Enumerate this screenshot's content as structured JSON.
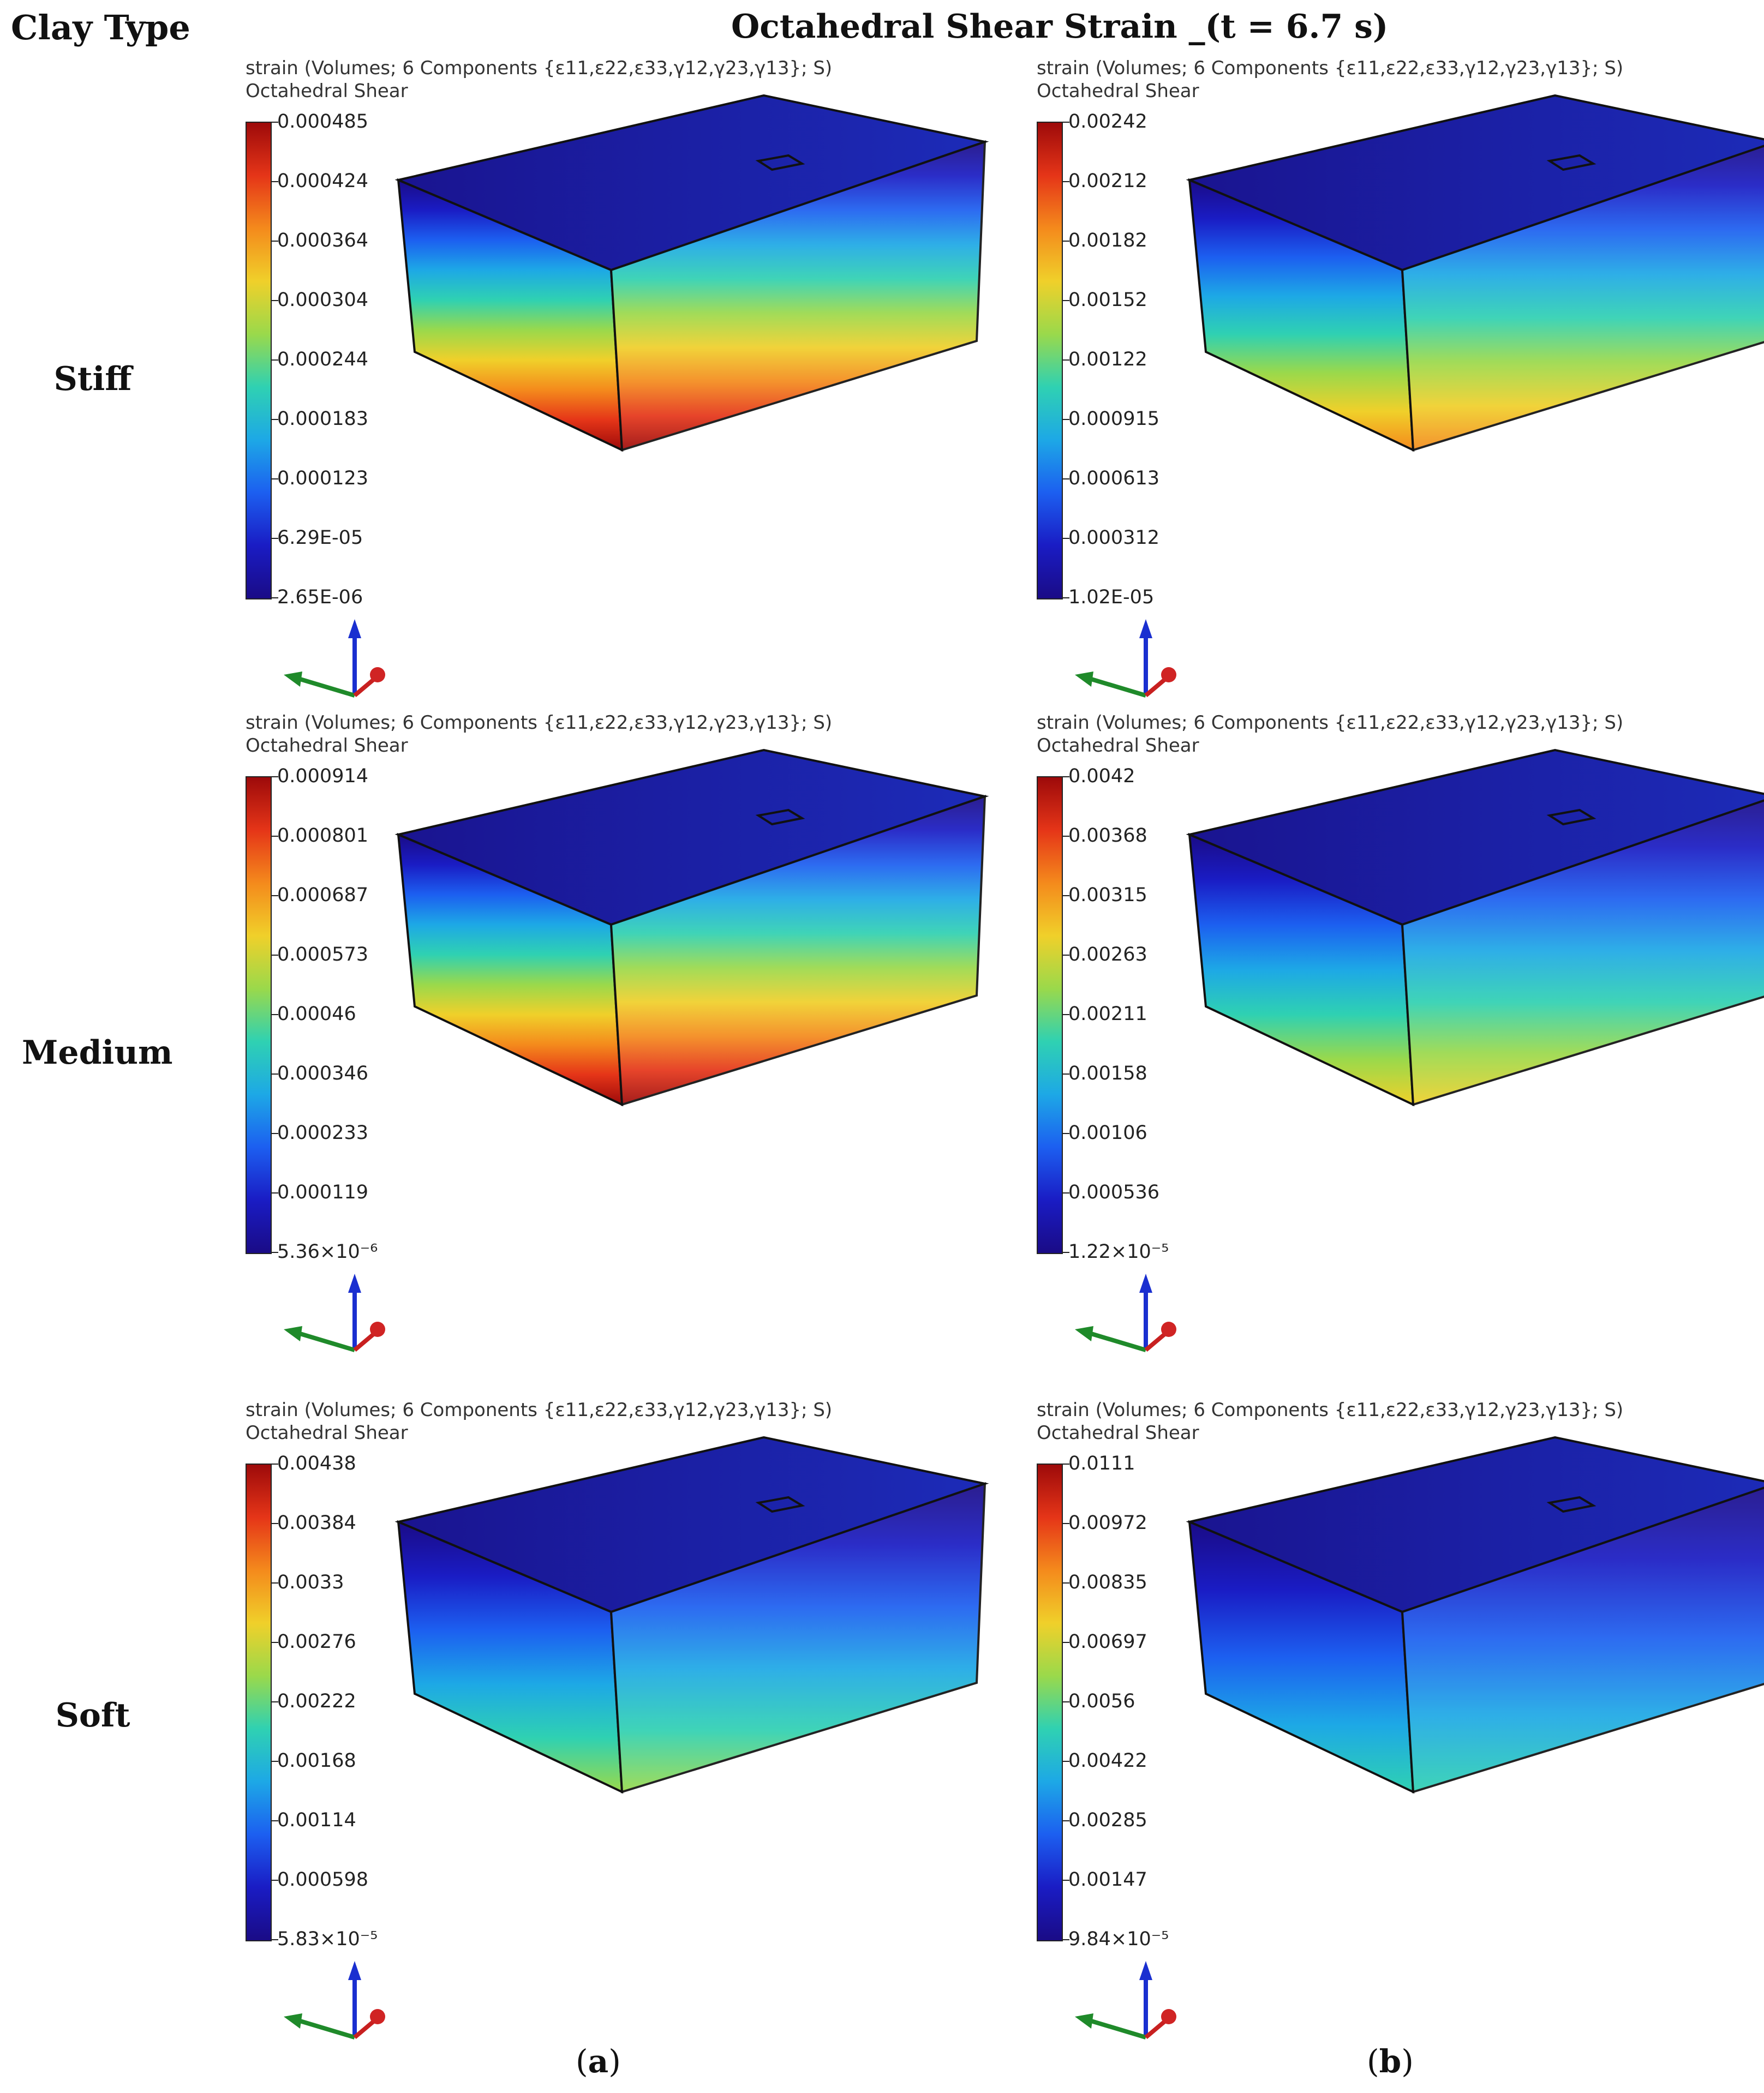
{
  "corner_title": "Clay Type",
  "title": "Octahedral Shear Strain _(t = 6.7 s)",
  "row_labels": [
    "Stiff",
    "Medium",
    "Soft"
  ],
  "col_labels": {
    "a": {
      "open": "(",
      "letter": "a",
      "close": ")"
    },
    "b": {
      "open": "(",
      "letter": "b",
      "close": ")"
    }
  },
  "legend_title_1": "strain (Volumes; 6 Components {ε11,ε22,ε33,γ12,γ23,γ13}; S)",
  "legend_title_2": "Octahedral Shear",
  "colormap": [
    "#9d0a0a",
    "#e53518",
    "#f48a1c",
    "#f0d02a",
    "#9ad94b",
    "#2fd1b2",
    "#1da8e6",
    "#1c5ff0",
    "#1a1cc4",
    "#1a0b86"
  ],
  "panels": [
    {
      "row": "Stiff",
      "col": "a",
      "scale": [
        "0.000485",
        "0.000424",
        "0.000364",
        "0.000304",
        "0.000244",
        "0.000183",
        "0.000123",
        "6.29E-05",
        "2.65E-06"
      ]
    },
    {
      "row": "Stiff",
      "col": "b",
      "scale": [
        "0.00242",
        "0.00212",
        "0.00182",
        "0.00152",
        "0.00122",
        "0.000915",
        "0.000613",
        "0.000312",
        "1.02E-05"
      ]
    },
    {
      "row": "Medium",
      "col": "a",
      "scale": [
        "0.000914",
        "0.000801",
        "0.000687",
        "0.000573",
        "0.00046",
        "0.000346",
        "0.000233",
        "0.000119",
        "5.36×10⁻⁶"
      ]
    },
    {
      "row": "Medium",
      "col": "b",
      "scale": [
        "0.0042",
        "0.00368",
        "0.00315",
        "0.00263",
        "0.00211",
        "0.00158",
        "0.00106",
        "0.000536",
        "1.22×10⁻⁵"
      ]
    },
    {
      "row": "Soft",
      "col": "a",
      "scale": [
        "0.00438",
        "0.00384",
        "0.0033",
        "0.00276",
        "0.00222",
        "0.00168",
        "0.00114",
        "0.000598",
        "5.83×10⁻⁵"
      ]
    },
    {
      "row": "Soft",
      "col": "b",
      "scale": [
        "0.0111",
        "0.00972",
        "0.00835",
        "0.00697",
        "0.0056",
        "0.00422",
        "0.00285",
        "0.00147",
        "9.84×10⁻⁵"
      ]
    }
  ]
}
